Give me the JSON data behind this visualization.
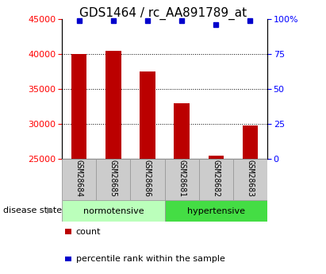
{
  "title": "GDS1464 / rc_AA891789_at",
  "samples": [
    "GSM28684",
    "GSM28685",
    "GSM28686",
    "GSM28681",
    "GSM28682",
    "GSM28683"
  ],
  "counts": [
    40000,
    40500,
    37500,
    33000,
    25500,
    29800
  ],
  "percentiles": [
    99,
    99,
    99,
    99,
    96,
    99
  ],
  "bar_color": "#bb0000",
  "dot_color": "#0000cc",
  "ylim_left": [
    25000,
    45000
  ],
  "ylim_right": [
    0,
    100
  ],
  "yticks_left": [
    25000,
    30000,
    35000,
    40000,
    45000
  ],
  "yticks_right": [
    0,
    25,
    50,
    75,
    100
  ],
  "grid_lines": [
    30000,
    35000,
    40000
  ],
  "normotensive_label": "normotensive",
  "hypertensive_label": "hypertensive",
  "disease_state_label": "disease state",
  "legend_count": "count",
  "legend_percentile": "percentile rank within the sample",
  "label_box_color": "#cccccc",
  "norm_box_color": "#bbffbb",
  "hyper_box_color": "#44dd44",
  "bar_bottom": 25000,
  "title_fontsize": 11,
  "tick_fontsize": 8,
  "bar_width": 0.45
}
